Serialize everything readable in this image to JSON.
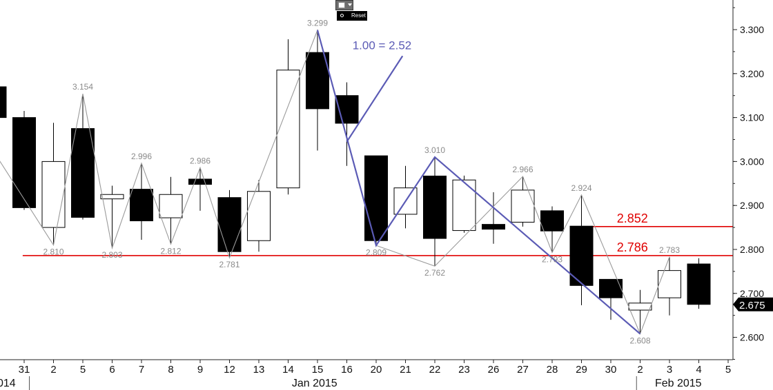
{
  "toolbar": {
    "reset_label": "Reset",
    "chart_type_icon": "line-chart-icon"
  },
  "colors": {
    "bull_fill": "#ffffff",
    "bear_fill": "#000000",
    "swing_line": "#9a9a9a",
    "swing_label": "#8a8a8a",
    "wave_line": "#5b5bb5",
    "level_line": "#e00000",
    "axis": "#222222",
    "last_price_bg": "#000000"
  },
  "chart_data": {
    "type": "candlestick",
    "x_labels": [
      "31",
      "2",
      "5",
      "6",
      "7",
      "8",
      "9",
      "12",
      "13",
      "14",
      "15",
      "16",
      "20",
      "21",
      "22",
      "23",
      "26",
      "27",
      "28",
      "29",
      "30",
      "2",
      "3",
      "4",
      "5"
    ],
    "period_labels": [
      {
        "text": "014",
        "at_index": -1
      },
      {
        "text": "Jan 2015",
        "at_index": 9.9
      },
      {
        "text": "Feb 2015",
        "at_index": 22.3
      }
    ],
    "ylim": [
      2.53,
      3.36
    ],
    "y_ticks": [
      "2.600",
      "2.700",
      "2.800",
      "2.900",
      "3.000",
      "3.100",
      "3.200",
      "3.300"
    ],
    "candles": [
      {
        "x": -1,
        "open": 3.17,
        "close": 3.1,
        "high": 3.18,
        "low": 3.09
      },
      {
        "x": 0,
        "open": 3.1,
        "close": 2.895,
        "high": 3.115,
        "low": 2.89
      },
      {
        "x": 1,
        "open": 2.85,
        "close": 3.0,
        "high": 3.088,
        "low": 2.81
      },
      {
        "x": 2,
        "open": 3.075,
        "close": 2.873,
        "high": 3.154,
        "low": 2.868
      },
      {
        "x": 3,
        "open": 2.915,
        "close": 2.925,
        "high": 2.945,
        "low": 2.803
      },
      {
        "x": 4,
        "open": 2.937,
        "close": 2.865,
        "high": 2.996,
        "low": 2.822
      },
      {
        "x": 5,
        "open": 2.872,
        "close": 2.925,
        "high": 2.965,
        "low": 2.812
      },
      {
        "x": 6,
        "open": 2.96,
        "close": 2.948,
        "high": 2.986,
        "low": 2.888
      },
      {
        "x": 7,
        "open": 2.918,
        "close": 2.795,
        "high": 2.935,
        "low": 2.781
      },
      {
        "x": 8,
        "open": 2.82,
        "close": 2.932,
        "high": 2.958,
        "low": 2.795
      },
      {
        "x": 9,
        "open": 2.94,
        "close": 3.208,
        "high": 3.278,
        "low": 2.925
      },
      {
        "x": 10,
        "open": 3.248,
        "close": 3.12,
        "high": 3.299,
        "low": 3.025
      },
      {
        "x": 11,
        "open": 3.15,
        "close": 3.087,
        "high": 3.18,
        "low": 2.99
      },
      {
        "x": 12,
        "open": 3.013,
        "close": 2.82,
        "high": 3.013,
        "low": 2.809
      },
      {
        "x": 13,
        "open": 2.88,
        "close": 2.94,
        "high": 2.99,
        "low": 2.848
      },
      {
        "x": 14,
        "open": 2.967,
        "close": 2.825,
        "high": 3.01,
        "low": 2.762
      },
      {
        "x": 15,
        "open": 2.843,
        "close": 2.958,
        "high": 2.968,
        "low": 2.838
      },
      {
        "x": 16,
        "open": 2.857,
        "close": 2.846,
        "high": 2.93,
        "low": 2.813
      },
      {
        "x": 17,
        "open": 2.862,
        "close": 2.935,
        "high": 2.966,
        "low": 2.852
      },
      {
        "x": 18,
        "open": 2.888,
        "close": 2.842,
        "high": 2.898,
        "low": 2.793
      },
      {
        "x": 19,
        "open": 2.853,
        "close": 2.718,
        "high": 2.924,
        "low": 2.673
      },
      {
        "x": 20,
        "open": 2.732,
        "close": 2.69,
        "high": 2.732,
        "low": 2.64
      },
      {
        "x": 21,
        "open": 2.662,
        "close": 2.678,
        "high": 2.708,
        "low": 2.608
      },
      {
        "x": 22,
        "open": 2.69,
        "close": 2.752,
        "high": 2.783,
        "low": 2.65
      },
      {
        "x": 23,
        "open": 2.767,
        "close": 2.675,
        "high": 2.78,
        "low": 2.665
      }
    ],
    "swing_line": [
      {
        "x": -1.3,
        "y": 3.05
      },
      {
        "x": 1,
        "y": 2.81
      },
      {
        "x": 2,
        "y": 3.154
      },
      {
        "x": 3,
        "y": 2.803
      },
      {
        "x": 4,
        "y": 2.996
      },
      {
        "x": 5,
        "y": 2.812
      },
      {
        "x": 6,
        "y": 2.986
      },
      {
        "x": 7,
        "y": 2.781
      },
      {
        "x": 10,
        "y": 3.299
      },
      {
        "x": 12,
        "y": 2.809
      },
      {
        "x": 14,
        "y": 2.762
      },
      {
        "x": 17,
        "y": 2.966
      },
      {
        "x": 18,
        "y": 2.793
      },
      {
        "x": 19,
        "y": 2.924
      },
      {
        "x": 21,
        "y": 2.608
      },
      {
        "x": 22,
        "y": 2.783
      }
    ],
    "swing_labels": [
      {
        "text": "2.810",
        "x": 1,
        "y": 2.81,
        "pos": "below"
      },
      {
        "text": "3.154",
        "x": 2,
        "y": 3.154,
        "pos": "above"
      },
      {
        "text": "2.803",
        "x": 3,
        "y": 2.803,
        "pos": "below"
      },
      {
        "text": "2.996",
        "x": 4,
        "y": 2.996,
        "pos": "above"
      },
      {
        "text": "2.812",
        "x": 5,
        "y": 2.812,
        "pos": "below"
      },
      {
        "text": "2.986",
        "x": 6,
        "y": 2.986,
        "pos": "above"
      },
      {
        "text": "2.781",
        "x": 7,
        "y": 2.781,
        "pos": "below"
      },
      {
        "text": "3.299",
        "x": 10,
        "y": 3.299,
        "pos": "above"
      },
      {
        "text": "2.809",
        "x": 12,
        "y": 2.809,
        "pos": "below"
      },
      {
        "text": "3.010",
        "x": 14,
        "y": 3.01,
        "pos": "above"
      },
      {
        "text": "2.762",
        "x": 14,
        "y": 2.762,
        "pos": "below"
      },
      {
        "text": "2.966",
        "x": 17,
        "y": 2.966,
        "pos": "above"
      },
      {
        "text": "2.793",
        "x": 18,
        "y": 2.793,
        "pos": "below"
      },
      {
        "text": "2.924",
        "x": 19,
        "y": 2.924,
        "pos": "above"
      },
      {
        "text": "2.608",
        "x": 21,
        "y": 2.608,
        "pos": "below"
      },
      {
        "text": "2.783",
        "x": 22,
        "y": 2.783,
        "pos": "above"
      }
    ],
    "wave_line": [
      {
        "x": 10,
        "y": 3.299
      },
      {
        "x": 12,
        "y": 2.809
      },
      {
        "x": 14,
        "y": 3.01
      },
      {
        "x": 21,
        "y": 2.608
      }
    ],
    "wave_arrow": {
      "from": {
        "x": 12.9,
        "y": 3.24
      },
      "to": {
        "x": 11,
        "y": 3.045
      }
    },
    "wave_label": {
      "text": "1.00 = 2.52",
      "x": 12.2,
      "y": 3.255
    },
    "levels": [
      {
        "value": 2.786,
        "label": "2.786",
        "x_start": -0.05,
        "x_label": 20.5
      },
      {
        "value": 2.852,
        "label": "2.852",
        "x_start": 19,
        "x_label": 20.5
      }
    ],
    "last_price": {
      "value": 2.675,
      "label": "2.675"
    },
    "month_separators": [
      -0.2,
      20.5
    ]
  }
}
